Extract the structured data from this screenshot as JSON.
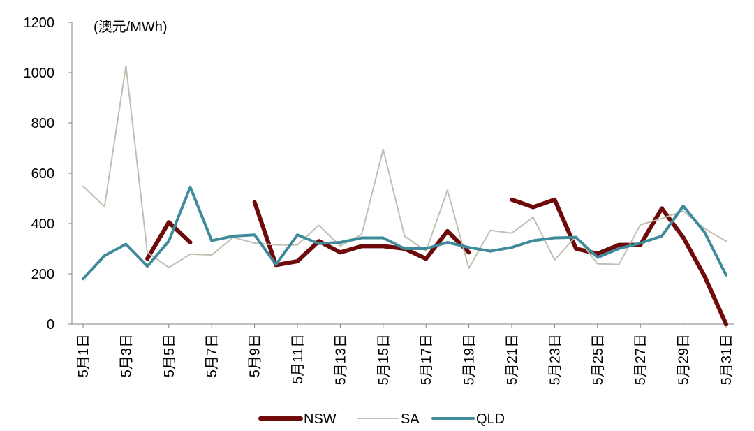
{
  "chart_data": {
    "type": "line",
    "title": "",
    "unit_label": "(澳元/MWh)",
    "xlabel": "",
    "ylabel": "",
    "ylim": [
      0,
      1200
    ],
    "yticks": [
      0,
      200,
      400,
      600,
      800,
      1000,
      1200
    ],
    "x_tick_labels": [
      "5月1日",
      "5月3日",
      "5月5日",
      "5月7日",
      "5月9日",
      "5月11日",
      "5月13日",
      "5月15日",
      "5月17日",
      "5月19日",
      "5月21日",
      "5月23日",
      "5月25日",
      "5月27日",
      "5月29日",
      "5月31日"
    ],
    "days": [
      1,
      2,
      3,
      4,
      5,
      6,
      7,
      8,
      9,
      10,
      11,
      12,
      13,
      14,
      15,
      16,
      17,
      18,
      19,
      20,
      21,
      22,
      23,
      24,
      25,
      26,
      27,
      28,
      29,
      30,
      31
    ],
    "legend_position": "bottom",
    "grid": false,
    "series": [
      {
        "name": "NSW",
        "color": "#6e0a0a",
        "width": 6,
        "values": [
          null,
          null,
          null,
          260,
          405,
          325,
          null,
          null,
          485,
          235,
          250,
          330,
          285,
          310,
          310,
          300,
          260,
          370,
          285,
          null,
          495,
          465,
          495,
          300,
          280,
          315,
          315,
          460,
          345,
          190,
          0
        ]
      },
      {
        "name": "SA",
        "color": "#bfbfb2",
        "width": 2,
        "values": [
          548,
          467,
          1027,
          285,
          225,
          278,
          275,
          345,
          322,
          315,
          315,
          393,
          310,
          357,
          695,
          350,
          290,
          533,
          222,
          373,
          362,
          425,
          255,
          350,
          240,
          237,
          395,
          420,
          450,
          380,
          330
        ]
      },
      {
        "name": "QLD",
        "color": "#3f8b9b",
        "width": 4,
        "values": [
          180,
          272,
          318,
          230,
          330,
          545,
          332,
          350,
          355,
          237,
          355,
          320,
          325,
          343,
          343,
          300,
          300,
          325,
          305,
          290,
          305,
          332,
          343,
          345,
          265,
          300,
          322,
          350,
          470,
          365,
          195
        ]
      }
    ]
  }
}
